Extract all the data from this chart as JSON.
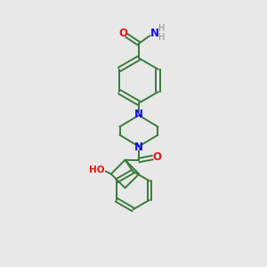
{
  "bg_color": "#e8e8e8",
  "bond_color": "#3a7a3a",
  "n_color": "#1010ee",
  "o_color": "#ee1010",
  "h_color": "#888888",
  "fig_size": [
    3.0,
    3.0
  ],
  "dpi": 100,
  "xlim": [
    0,
    10
  ],
  "ylim": [
    0,
    10
  ]
}
